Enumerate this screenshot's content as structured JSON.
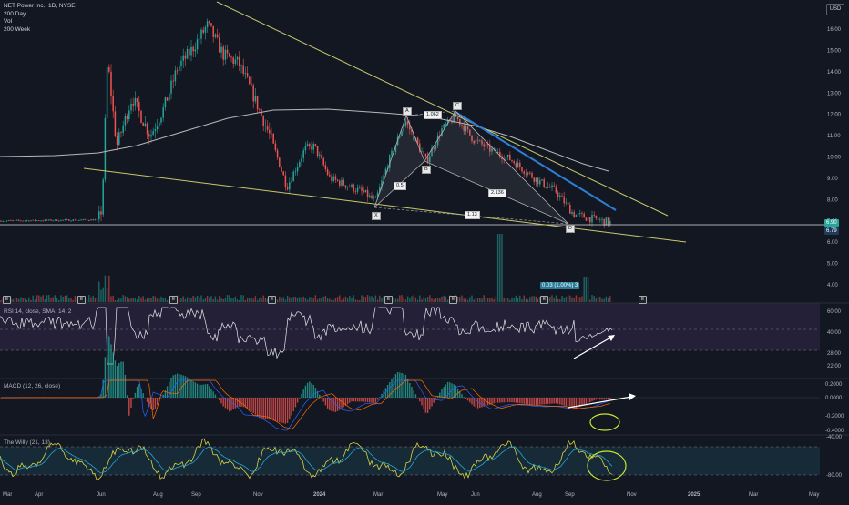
{
  "header": {
    "symbol_line": "NET Power Inc., 1D, NYSE",
    "indicators": [
      "200 Day",
      "Vol",
      "200 Week"
    ],
    "currency_button": "USD"
  },
  "colors": {
    "background": "#131722",
    "up": "#26a69a",
    "down": "#ef5350",
    "trendline": "#c8c86a",
    "blue_line": "#2d7fd6",
    "ma_line": "#b8b8b8",
    "rsi_band": "#2a2440"
  },
  "price_axis": {
    "ticks": [
      "16.00",
      "15.00",
      "14.00",
      "13.00",
      "12.00",
      "11.00",
      "10.00",
      "9.00",
      "8.00",
      "7.00",
      "6.00",
      "5.00",
      "4.00"
    ],
    "last_price": "6.90",
    "second_price": "6.79"
  },
  "time_axis": [
    "Mar",
    "Apr",
    "Jun",
    "Aug",
    "Sep",
    "Nov",
    "2024",
    "Mar",
    "May",
    "Jun",
    "Aug",
    "Sep",
    "Nov",
    "2025",
    "Mar",
    "May"
  ],
  "harmonic": {
    "points": [
      "X",
      "A",
      "B",
      "C",
      "D"
    ],
    "ratios": [
      "1.062",
      "0.5",
      "2.136",
      "1.13"
    ]
  },
  "measure_tag": "0.03 (1.00%) 3",
  "events": [
    "E",
    "E",
    "E",
    "E",
    "E",
    "E",
    "E",
    "E"
  ],
  "panes": {
    "rsi": {
      "label": "RSI 14, close, SMA, 14, 2",
      "ticks": [
        "60.00",
        "40.00",
        "28.00",
        "22.00"
      ]
    },
    "macd": {
      "label": "MACD (12, 26, close)",
      "ticks": [
        "0.2000",
        "0.0000",
        "-0.2000",
        "-0.4000"
      ]
    },
    "willy": {
      "label": "The Willy (21, 13)",
      "ticks": [
        "-40.00",
        "-80.00"
      ]
    }
  },
  "chart_data": {
    "type": "candlestick",
    "title": "NET Power Inc., 1D, NYSE",
    "ylim": [
      3.5,
      17
    ],
    "x": [
      "Mar",
      "Apr",
      "Jun",
      "Aug",
      "Sep",
      "Nov",
      "2024",
      "Mar",
      "May",
      "Jun",
      "Aug",
      "Sep"
    ],
    "close": [
      7.0,
      6.9,
      7.1,
      14.0,
      15.6,
      10.5,
      8.6,
      11.6,
      11.8,
      10.2,
      8.0,
      6.9
    ],
    "series": [
      {
        "name": "200 Day",
        "values": [
          7.0,
          7.1,
          7.2,
          9.5,
          11.0,
          11.6,
          11.8,
          11.9,
          11.7,
          11.0,
          9.8,
          9.5
        ]
      }
    ],
    "last_value": 6.9
  }
}
